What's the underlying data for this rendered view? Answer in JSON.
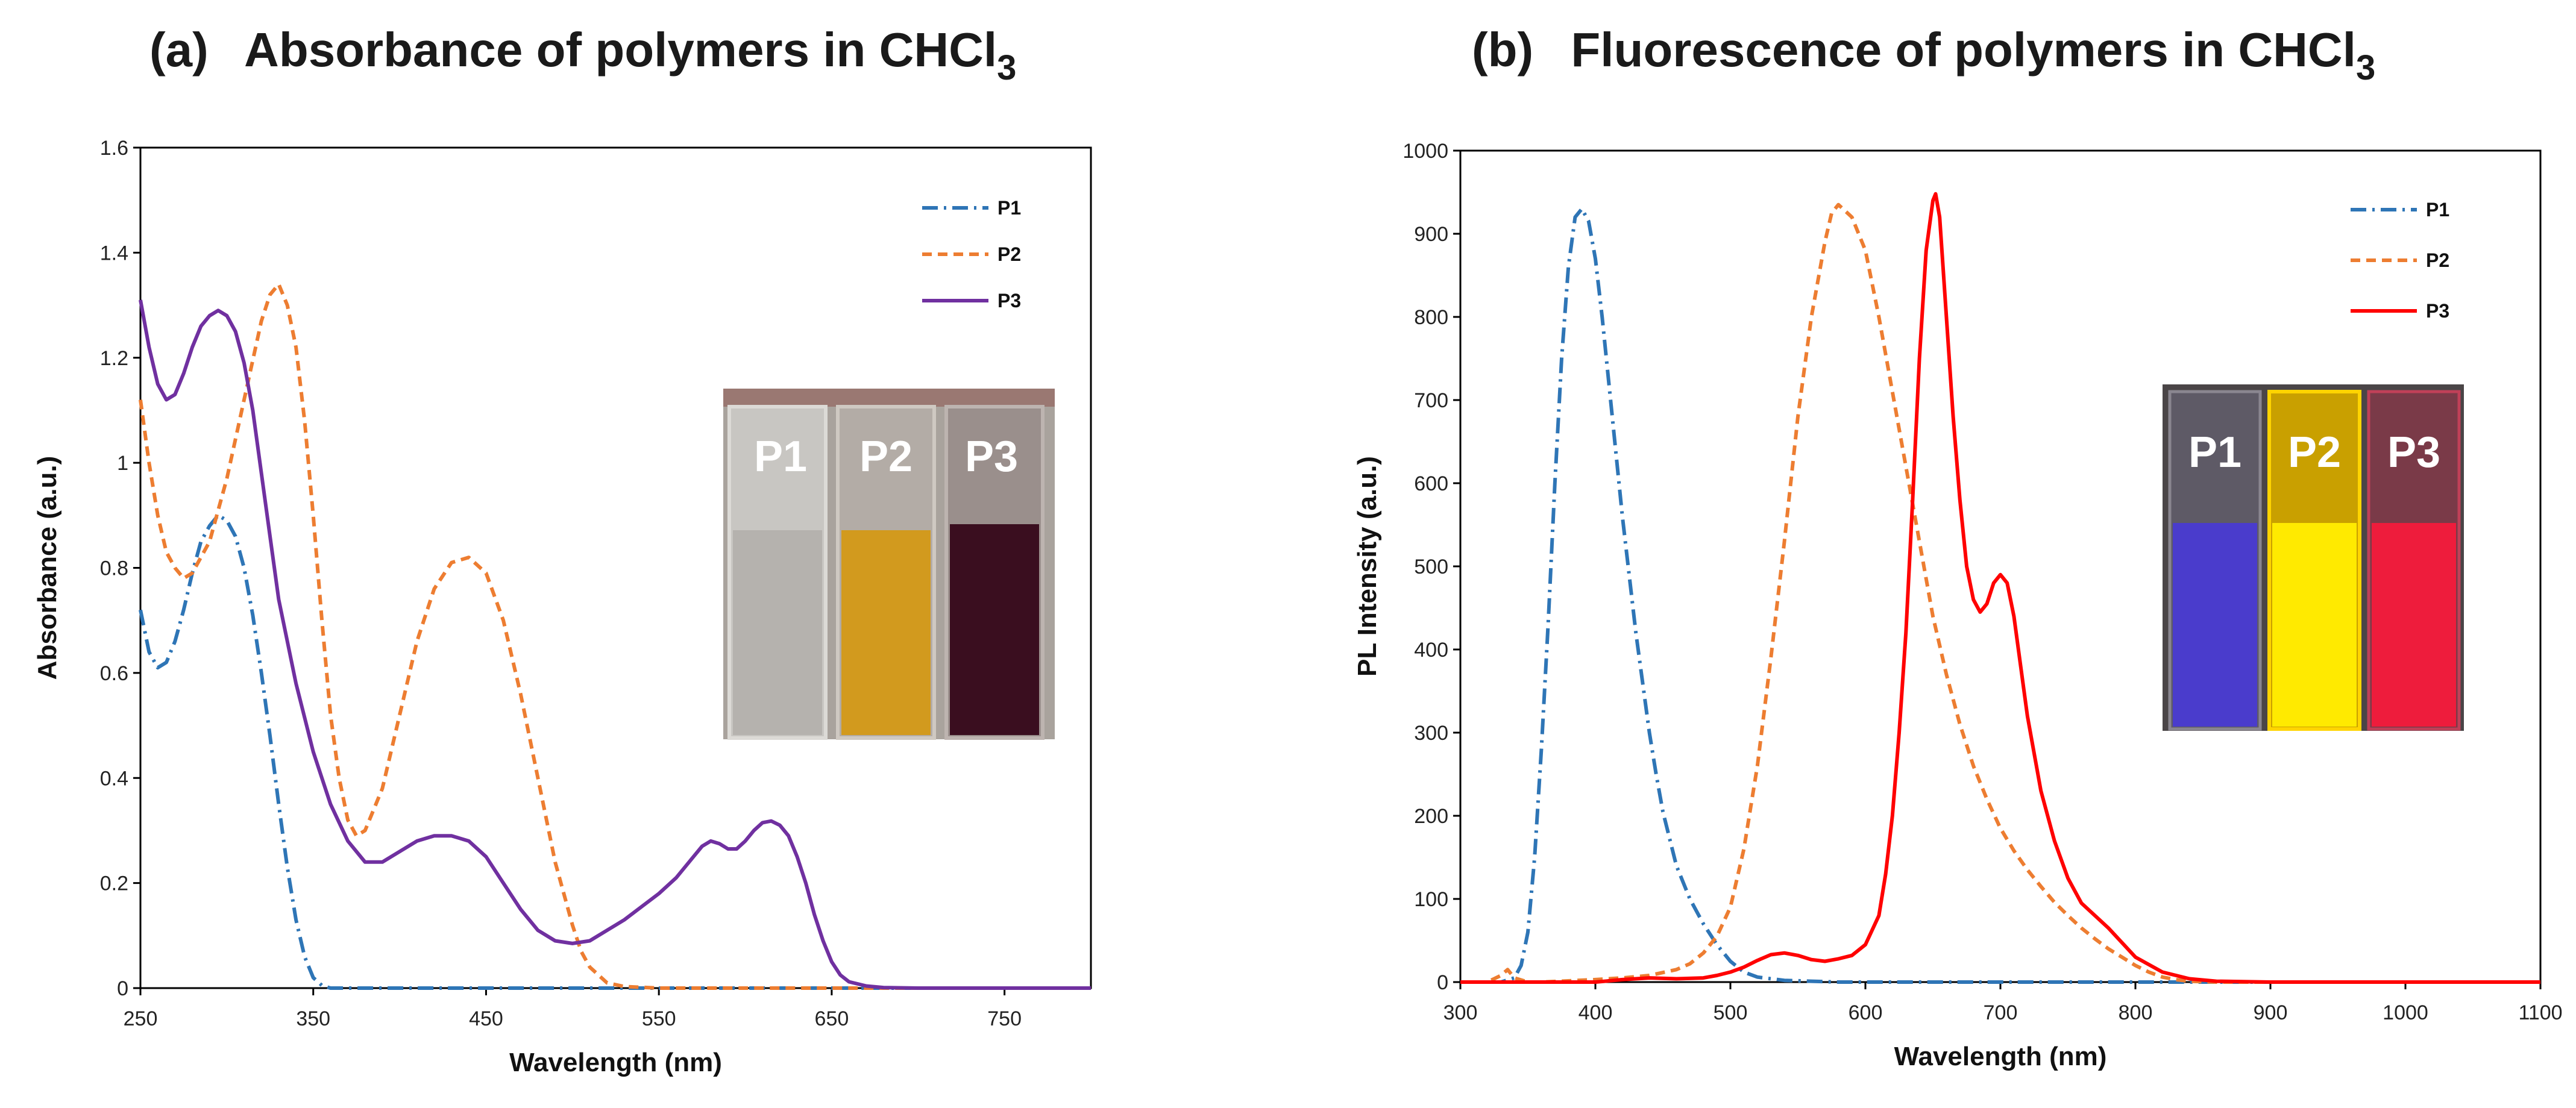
{
  "colors": {
    "P1": "#2e75b6",
    "P2": "#ed7d31",
    "P3a": "#7030a0",
    "P3b": "#ff0000"
  },
  "panels": [
    {
      "label": "(a)",
      "title": "Absorbance of polymers in CHCl",
      "title_sub": "3"
    },
    {
      "label": "(b)",
      "title": "Fluorescence of polymers in CHCl",
      "title_sub": "3"
    }
  ],
  "inset_a": {
    "vials": [
      "P1",
      "P2",
      "P3"
    ]
  },
  "inset_b": {
    "vials": [
      "P1",
      "P2",
      "P3"
    ]
  },
  "chart_data": [
    {
      "type": "line",
      "title": "Absorbance of polymers in CHCl3",
      "xlabel": "Wavelength (nm)",
      "ylabel": "Absorbance (a.u.)",
      "xlim": [
        250,
        800
      ],
      "ylim": [
        0,
        1.6
      ],
      "xticks": [
        250,
        350,
        450,
        550,
        650,
        750
      ],
      "yticks": [
        0,
        0.2,
        0.4,
        0.6,
        0.8,
        1,
        1.2,
        1.4,
        1.6
      ],
      "ytick_labels": [
        "0",
        "0.2",
        "0.4",
        "0.6",
        "0.8",
        "1",
        "1.2",
        "1.4",
        "1.6"
      ],
      "grid": false,
      "legend": "top-right",
      "series": [
        {
          "name": "P1",
          "style": "dashdot",
          "color": "#2e75b6",
          "x": [
            250,
            255,
            260,
            265,
            270,
            275,
            280,
            285,
            290,
            295,
            300,
            305,
            310,
            315,
            320,
            325,
            330,
            335,
            340,
            345,
            350,
            355,
            360,
            370,
            400,
            500,
            600,
            700,
            800
          ],
          "y": [
            0.72,
            0.64,
            0.61,
            0.62,
            0.66,
            0.72,
            0.79,
            0.85,
            0.88,
            0.9,
            0.89,
            0.86,
            0.8,
            0.71,
            0.6,
            0.48,
            0.35,
            0.23,
            0.13,
            0.06,
            0.02,
            0.005,
            0,
            0,
            0,
            0,
            0,
            0,
            0
          ]
        },
        {
          "name": "P2",
          "style": "dashed",
          "color": "#ed7d31",
          "x": [
            250,
            255,
            260,
            265,
            270,
            275,
            280,
            290,
            300,
            310,
            320,
            325,
            330,
            335,
            340,
            345,
            350,
            355,
            360,
            365,
            370,
            375,
            380,
            390,
            400,
            410,
            420,
            430,
            440,
            450,
            460,
            470,
            480,
            490,
            500,
            505,
            510,
            520,
            530,
            550,
            600,
            650,
            700,
            800
          ],
          "y": [
            1.12,
            1.0,
            0.9,
            0.83,
            0.8,
            0.78,
            0.79,
            0.85,
            0.97,
            1.12,
            1.27,
            1.32,
            1.34,
            1.3,
            1.22,
            1.08,
            0.9,
            0.7,
            0.52,
            0.4,
            0.32,
            0.29,
            0.3,
            0.38,
            0.52,
            0.66,
            0.76,
            0.81,
            0.82,
            0.79,
            0.7,
            0.56,
            0.4,
            0.24,
            0.12,
            0.07,
            0.04,
            0.01,
            0.003,
            0,
            0,
            0,
            0,
            0
          ]
        },
        {
          "name": "P3",
          "style": "solid",
          "color": "#7030a0",
          "x": [
            250,
            255,
            260,
            265,
            270,
            275,
            280,
            285,
            290,
            295,
            300,
            305,
            310,
            315,
            320,
            325,
            330,
            340,
            350,
            360,
            370,
            380,
            390,
            400,
            410,
            420,
            430,
            440,
            450,
            460,
            470,
            480,
            490,
            500,
            510,
            520,
            530,
            540,
            550,
            560,
            570,
            575,
            580,
            585,
            590,
            595,
            600,
            605,
            610,
            615,
            620,
            625,
            630,
            635,
            640,
            645,
            650,
            655,
            660,
            670,
            680,
            700,
            800
          ],
          "y": [
            1.31,
            1.22,
            1.15,
            1.12,
            1.13,
            1.17,
            1.22,
            1.26,
            1.28,
            1.29,
            1.28,
            1.25,
            1.19,
            1.1,
            0.98,
            0.86,
            0.74,
            0.58,
            0.45,
            0.35,
            0.28,
            0.24,
            0.24,
            0.26,
            0.28,
            0.29,
            0.29,
            0.28,
            0.25,
            0.2,
            0.15,
            0.11,
            0.09,
            0.085,
            0.09,
            0.11,
            0.13,
            0.155,
            0.18,
            0.21,
            0.25,
            0.27,
            0.28,
            0.275,
            0.265,
            0.265,
            0.28,
            0.3,
            0.315,
            0.318,
            0.31,
            0.29,
            0.25,
            0.2,
            0.14,
            0.09,
            0.05,
            0.025,
            0.012,
            0.004,
            0.001,
            0,
            0
          ]
        }
      ]
    },
    {
      "type": "line",
      "title": "Fluorescence of polymers in CHCl3",
      "xlabel": "Wavelength (nm)",
      "ylabel": "PL Intensity (a.u.)",
      "xlim": [
        300,
        1100
      ],
      "ylim": [
        0,
        1000
      ],
      "xticks": [
        300,
        400,
        500,
        600,
        700,
        800,
        900,
        1000,
        1100
      ],
      "yticks": [
        0,
        100,
        200,
        300,
        400,
        500,
        600,
        700,
        800,
        900,
        1000
      ],
      "grid": false,
      "legend": "top-right",
      "series": [
        {
          "name": "P1",
          "style": "dashdot",
          "color": "#2e75b6",
          "x": [
            300,
            330,
            340,
            345,
            350,
            355,
            360,
            365,
            370,
            375,
            380,
            385,
            390,
            395,
            400,
            405,
            410,
            415,
            420,
            425,
            430,
            435,
            440,
            445,
            450,
            460,
            470,
            480,
            490,
            500,
            510,
            520,
            540,
            560,
            580,
            600,
            1100
          ],
          "y": [
            0,
            0,
            5,
            20,
            60,
            150,
            280,
            430,
            600,
            750,
            860,
            920,
            930,
            915,
            870,
            800,
            720,
            640,
            560,
            490,
            420,
            360,
            300,
            250,
            205,
            140,
            100,
            70,
            45,
            25,
            12,
            6,
            2,
            1,
            0,
            0,
            0
          ]
        },
        {
          "name": "P2",
          "style": "dashed",
          "color": "#ed7d31",
          "x": [
            300,
            320,
            330,
            335,
            340,
            350,
            360,
            400,
            420,
            440,
            460,
            470,
            480,
            490,
            500,
            510,
            520,
            530,
            540,
            550,
            560,
            570,
            575,
            580,
            590,
            600,
            610,
            620,
            630,
            640,
            650,
            660,
            670,
            680,
            690,
            700,
            710,
            720,
            730,
            740,
            750,
            760,
            770,
            780,
            790,
            800,
            810,
            820,
            830,
            840,
            860,
            1100
          ],
          "y": [
            0,
            0,
            8,
            15,
            5,
            0,
            0,
            3,
            5,
            8,
            15,
            22,
            35,
            55,
            90,
            160,
            260,
            390,
            530,
            680,
            800,
            890,
            925,
            935,
            920,
            880,
            800,
            710,
            620,
            530,
            440,
            370,
            310,
            260,
            220,
            185,
            158,
            135,
            115,
            96,
            80,
            65,
            52,
            40,
            30,
            20,
            12,
            6,
            3,
            1,
            0,
            0
          ]
        },
        {
          "name": "P3",
          "style": "solid",
          "color": "#ff0000",
          "x": [
            300,
            400,
            420,
            440,
            460,
            480,
            490,
            500,
            510,
            520,
            530,
            540,
            550,
            560,
            570,
            580,
            590,
            600,
            610,
            615,
            620,
            625,
            630,
            635,
            640,
            645,
            650,
            652,
            655,
            660,
            665,
            670,
            675,
            680,
            685,
            690,
            695,
            700,
            705,
            710,
            715,
            720,
            730,
            740,
            750,
            760,
            780,
            800,
            820,
            840,
            860,
            900,
            1100
          ],
          "y": [
            0,
            0,
            3,
            5,
            4,
            5,
            8,
            12,
            18,
            26,
            33,
            35,
            32,
            27,
            25,
            28,
            32,
            45,
            80,
            130,
            200,
            300,
            420,
            580,
            750,
            880,
            940,
            948,
            920,
            800,
            680,
            580,
            500,
            460,
            445,
            455,
            480,
            490,
            480,
            440,
            380,
            320,
            230,
            170,
            125,
            95,
            65,
            30,
            12,
            4,
            1,
            0,
            0
          ]
        }
      ]
    }
  ]
}
